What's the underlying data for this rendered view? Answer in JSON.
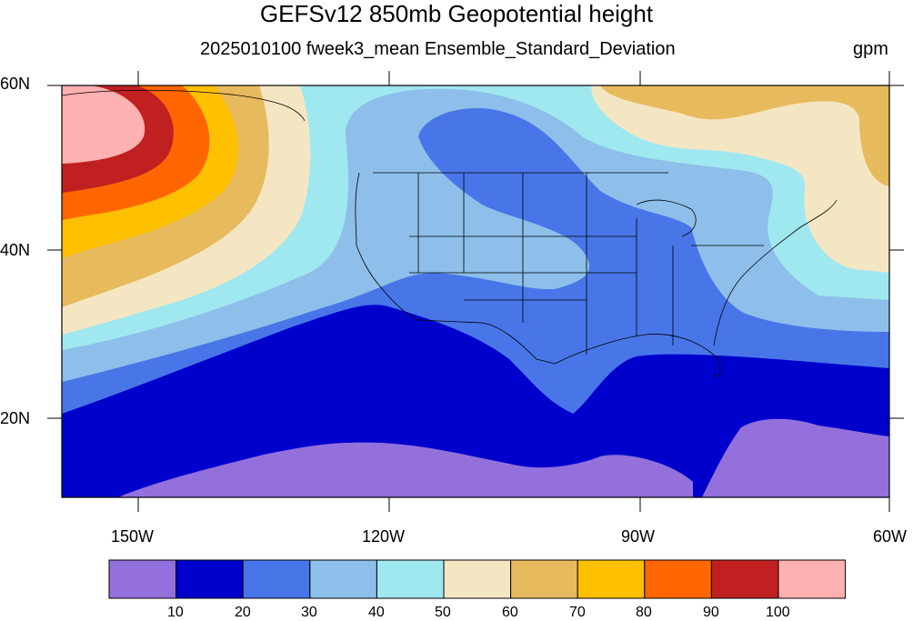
{
  "title": "GEFSv12 850mb Geopotential height",
  "subtitle": "2025010100 fweek3_mean Ensemble_Standard_Deviation",
  "units": "gpm",
  "lat_labels": [
    "60N",
    "40N",
    "20N"
  ],
  "lon_labels": [
    "150W",
    "120W",
    "90W",
    "60W"
  ],
  "colorbar": {
    "levels": [
      "10",
      "20",
      "30",
      "40",
      "50",
      "60",
      "70",
      "80",
      "90",
      "100"
    ],
    "colors": [
      "#9370DB",
      "#0000CD",
      "#4876E8",
      "#8DBFEA",
      "#A0E8F0",
      "#F5E6C3",
      "#E8BA5E",
      "#FFC000",
      "#FF6600",
      "#C02020",
      "#FFB0B0"
    ]
  }
}
